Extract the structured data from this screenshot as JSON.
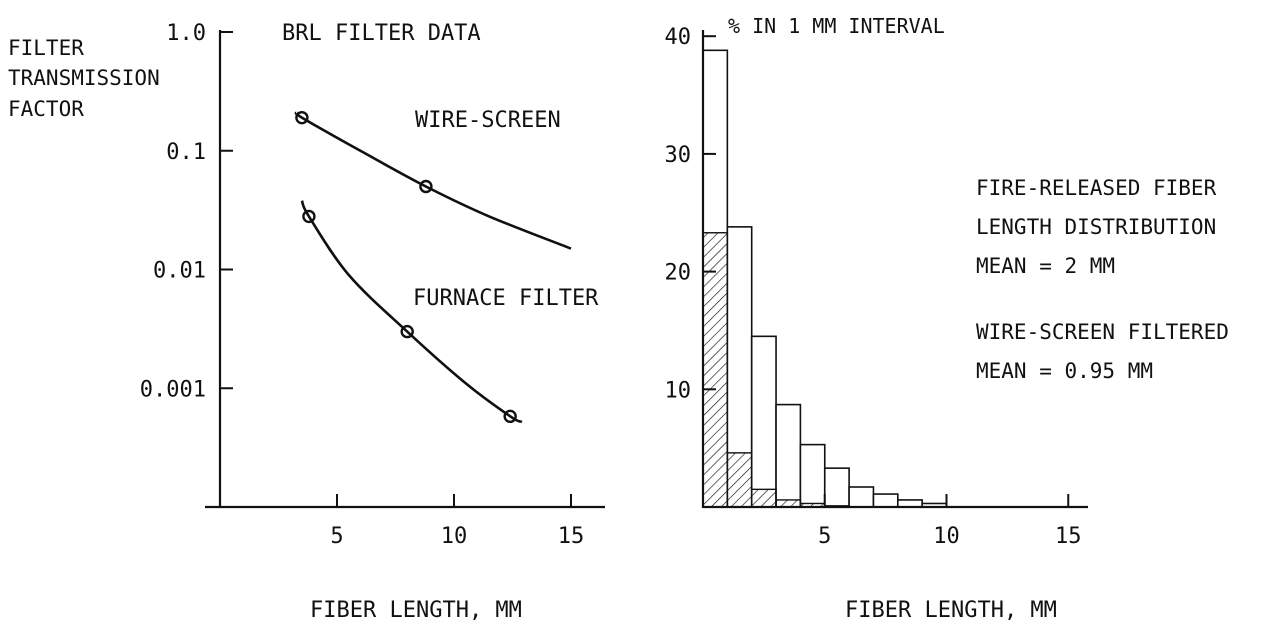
{
  "chart_data": [
    {
      "type": "line",
      "title": "BRL FILTER DATA",
      "ylabel": [
        "FILTER",
        "TRANSMISSION",
        "FACTOR"
      ],
      "xlabel": "FIBER LENGTH, MM",
      "yscale": "log",
      "ylim": [
        0.0001,
        1.0
      ],
      "yticks": [
        1.0,
        0.1,
        0.01,
        0.001,
        0.0001
      ],
      "ytick_labels": [
        "1.0",
        "0.1",
        "0.01",
        "0.001",
        ""
      ],
      "xlim": [
        0,
        15
      ],
      "xticks": [
        5,
        10,
        15
      ],
      "xtick_labels": [
        "5",
        "10",
        "15"
      ],
      "series": [
        {
          "name": "WIRE-SCREEN",
          "points": [
            [
              3.5,
              0.19
            ],
            [
              8.8,
              0.05
            ]
          ],
          "curve": [
            [
              3.3,
              0.21
            ],
            [
              3.5,
              0.19
            ],
            [
              6,
              0.1
            ],
            [
              8.8,
              0.05
            ],
            [
              11.5,
              0.028
            ],
            [
              15,
              0.015
            ]
          ]
        },
        {
          "name": "FURNACE FILTER",
          "points": [
            [
              3.8,
              0.028
            ],
            [
              8.0,
              0.003
            ],
            [
              12.4,
              0.00058
            ]
          ],
          "curve": [
            [
              3.5,
              0.038
            ],
            [
              3.8,
              0.028
            ],
            [
              5.5,
              0.009
            ],
            [
              8.0,
              0.003
            ],
            [
              10.5,
              0.0011
            ],
            [
              12.4,
              0.00058
            ],
            [
              12.9,
              0.00052
            ]
          ]
        }
      ]
    },
    {
      "type": "bar",
      "title": "% IN 1 MM INTERVAL",
      "xlabel": "FIBER LENGTH, MM",
      "ylim": [
        0,
        40
      ],
      "yticks": [
        10,
        20,
        30,
        40
      ],
      "ytick_labels": [
        "10",
        "20",
        "30",
        "40"
      ],
      "xlim": [
        0,
        15
      ],
      "xticks": [
        5,
        10,
        15
      ],
      "xtick_labels": [
        "5",
        "10",
        "15"
      ],
      "bin_width": 1,
      "series": [
        {
          "name": "FIRE-RELEASED",
          "style": "outline",
          "x_start": [
            0,
            1,
            2,
            3,
            4,
            5,
            6,
            7,
            8,
            9
          ],
          "values": [
            38.8,
            23.8,
            14.5,
            8.7,
            5.3,
            3.3,
            1.7,
            1.1,
            0.6,
            0.3
          ]
        },
        {
          "name": "WIRE-SCREEN FILTERED",
          "style": "hatched",
          "x_start": [
            0,
            1,
            2,
            3,
            4,
            5
          ],
          "values": [
            23.3,
            4.6,
            1.5,
            0.6,
            0.3,
            0.1
          ]
        }
      ],
      "annotations": [
        [
          "FIRE-RELEASED FIBER",
          "LENGTH DISTRIBUTION",
          "MEAN = 2 MM"
        ],
        [
          "WIRE-SCREEN FILTERED",
          "MEAN = 0.95 MM"
        ]
      ]
    }
  ]
}
